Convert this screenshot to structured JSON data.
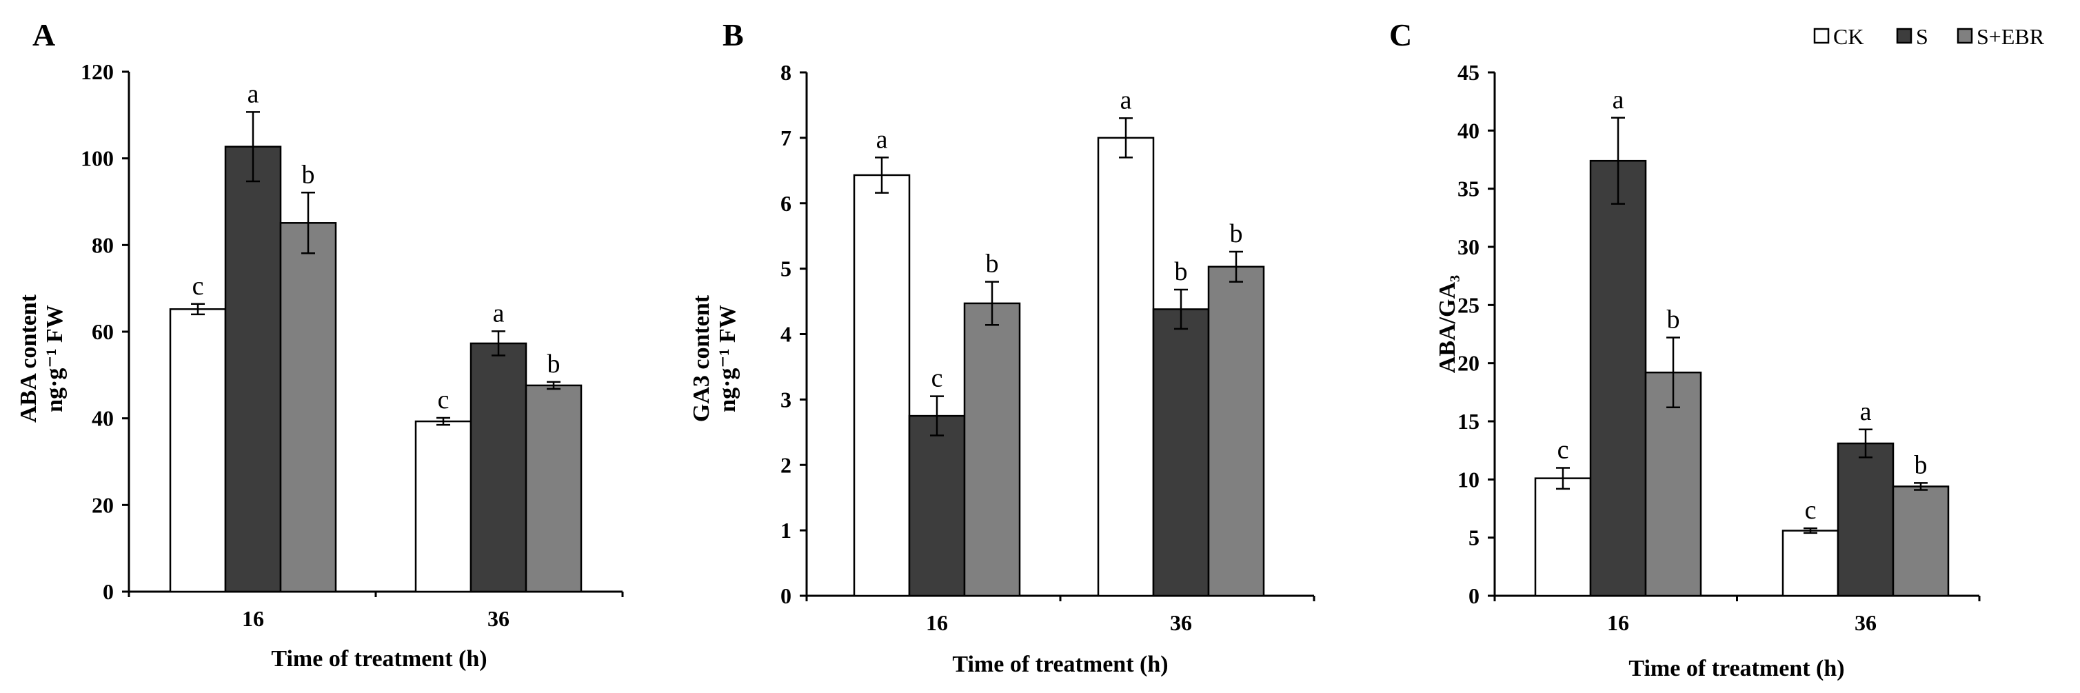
{
  "colors": {
    "CK": "#ffffff",
    "S": "#3d3d3d",
    "S+EBR": "#808080",
    "axis": "#000000"
  },
  "legend": [
    {
      "key": "CK",
      "label": "CK"
    },
    {
      "key": "S",
      "label": "S"
    },
    {
      "key": "S+EBR",
      "label": "S+EBR"
    }
  ],
  "chart_data": [
    {
      "panel": "A",
      "type": "bar",
      "categories": [
        "16",
        "36"
      ],
      "xlabel": "Time of treatment (h)",
      "ylabel_line1": "ABA content",
      "ylabel_line2": "ng·g⁻¹ FW",
      "ylim": [
        0,
        120
      ],
      "yticks": [
        "0",
        "20",
        "40",
        "60",
        "80",
        "100",
        "120"
      ],
      "series": [
        {
          "name": "CK",
          "values": [
            65.2,
            39.3
          ],
          "errors": [
            1.2,
            0.8
          ],
          "letters": [
            "c",
            "c"
          ]
        },
        {
          "name": "S",
          "values": [
            102.7,
            57.3
          ],
          "errors": [
            8.0,
            2.8
          ],
          "letters": [
            "a",
            "a"
          ]
        },
        {
          "name": "S+EBR",
          "values": [
            85.1,
            47.6
          ],
          "errors": [
            7.0,
            0.8
          ],
          "letters": [
            "b",
            "b"
          ]
        }
      ]
    },
    {
      "panel": "B",
      "type": "bar",
      "categories": [
        "16",
        "36"
      ],
      "xlabel": "Time of treatment (h)",
      "ylabel_line1": "GA3 content",
      "ylabel_line2": "ng·g⁻¹ FW",
      "ylim": [
        0,
        8
      ],
      "yticks": [
        "0",
        "1",
        "2",
        "3",
        "4",
        "5",
        "6",
        "7",
        "8"
      ],
      "series": [
        {
          "name": "CK",
          "values": [
            6.43,
            7.0
          ],
          "errors": [
            0.27,
            0.3
          ],
          "letters": [
            "a",
            "a"
          ]
        },
        {
          "name": "S",
          "values": [
            2.75,
            4.38
          ],
          "errors": [
            0.3,
            0.3
          ],
          "letters": [
            "c",
            "b"
          ]
        },
        {
          "name": "S+EBR",
          "values": [
            4.47,
            5.03
          ],
          "errors": [
            0.33,
            0.23
          ],
          "letters": [
            "b",
            "b"
          ]
        }
      ]
    },
    {
      "panel": "C",
      "type": "bar",
      "categories": [
        "16",
        "36"
      ],
      "xlabel": "Time of treatment (h)",
      "ylabel_line1": "ABA/GA₃",
      "ylabel_line2": "",
      "ylim": [
        0,
        45
      ],
      "yticks": [
        "0",
        "5",
        "10",
        "15",
        "20",
        "25",
        "30",
        "35",
        "40",
        "45"
      ],
      "series": [
        {
          "name": "CK",
          "values": [
            10.1,
            5.6
          ],
          "errors": [
            0.9,
            0.2
          ],
          "letters": [
            "c",
            "c"
          ]
        },
        {
          "name": "S",
          "values": [
            37.4,
            13.1
          ],
          "errors": [
            3.7,
            1.2
          ],
          "letters": [
            "a",
            "a"
          ]
        },
        {
          "name": "S+EBR",
          "values": [
            19.2,
            9.4
          ],
          "errors": [
            3.0,
            0.3
          ],
          "letters": [
            "b",
            "b"
          ]
        }
      ]
    }
  ]
}
